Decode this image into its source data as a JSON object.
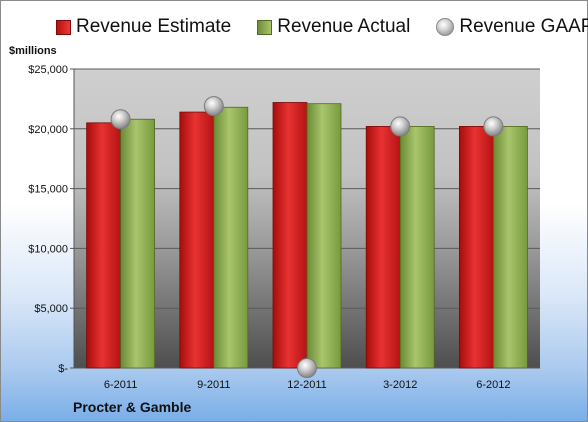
{
  "unit_label": "$millions",
  "company": "Procter & Gamble",
  "legend": {
    "estimate": "Revenue Estimate",
    "actual": "Revenue Actual",
    "gaap": "Revenue GAAP"
  },
  "colors": {
    "estimate": "#d42222",
    "actual": "#8fae55",
    "gaap": "#b8b8b8"
  },
  "chart_data": {
    "type": "bar",
    "categories": [
      "6-2011",
      "9-2011",
      "12-2011",
      "3-2012",
      "6-2012"
    ],
    "series": [
      {
        "name": "Revenue Estimate",
        "type": "bar",
        "values": [
          20500,
          21400,
          22200,
          20200,
          20200
        ]
      },
      {
        "name": "Revenue Actual",
        "type": "bar",
        "values": [
          20800,
          21800,
          22100,
          20200,
          20200
        ]
      },
      {
        "name": "Revenue GAAP",
        "type": "scatter",
        "values": [
          20800,
          21900,
          0,
          20200,
          20200
        ]
      }
    ],
    "ylabel": "$millions",
    "ylim": [
      0,
      25000
    ],
    "yticks": [
      0,
      5000,
      10000,
      15000,
      20000,
      25000
    ],
    "ytick_labels": [
      "$-",
      "$5,000",
      "$10,000",
      "$15,000",
      "$20,000",
      "$25,000"
    ],
    "grid": true,
    "legend_position": "top"
  }
}
